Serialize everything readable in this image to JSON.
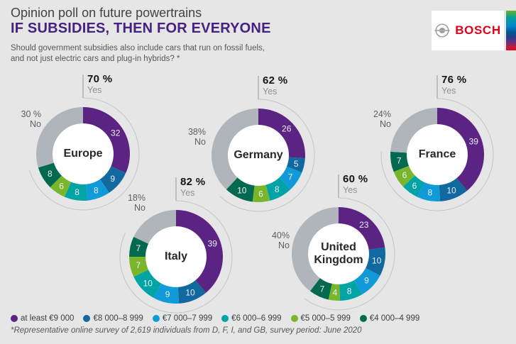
{
  "header": {
    "title": "Opinion poll on future powertrains",
    "headline": "IF SUBSIDIES, THEN FOR EVERYONE",
    "subtitle_line1": "Should government subsidies also include cars that run on fossil fuels,",
    "subtitle_line2": "and not just electric cars and plug-in hybrids? *",
    "brand": "BOSCH"
  },
  "colors": {
    "background": "#E6E6E7",
    "headline_purple": "#46217E",
    "bosch_red": "#E30016",
    "callout_arc_gray": "#C2C6C9",
    "callout_tick_gray": "#9FA4A8"
  },
  "chart_data": {
    "type": "pie",
    "subtype": "donut",
    "title": "IF SUBSIDIES, THEN FOR EVERYONE",
    "unit": "%",
    "legend_position": "bottom",
    "yes_label": "Yes",
    "no_label": "No",
    "legend": [
      "at least €9 000",
      "€8 000–8 999",
      "€7 000–7 999",
      "€6 000–6 999",
      "€5 000–5 999",
      "€4 000–4 999"
    ],
    "segment_colors": [
      "#5B2483",
      "#11699F",
      "#109BD8",
      "#00A4A4",
      "#7AB62C",
      "#046A4F"
    ],
    "no_color": "#AFB5BA",
    "charts": [
      {
        "name": "Europe",
        "yes_pct": "70 %",
        "no_pct": "30 %",
        "yes_value": 70,
        "no_value": 30,
        "values": [
          32,
          9,
          8,
          8,
          6,
          8
        ]
      },
      {
        "name": "Germany",
        "yes_pct": "62 %",
        "no_pct": "38%",
        "yes_value": 62,
        "no_value": 38,
        "values": [
          26,
          5,
          7,
          8,
          6,
          10
        ]
      },
      {
        "name": "France",
        "yes_pct": "76 %",
        "no_pct": "24%",
        "yes_value": 76,
        "no_value": 24,
        "values": [
          39,
          10,
          8,
          6,
          6,
          7
        ]
      },
      {
        "name": "Italy",
        "yes_pct": "82 %",
        "no_pct": "18%",
        "yes_value": 82,
        "no_value": 18,
        "values": [
          39,
          10,
          9,
          10,
          7,
          7
        ]
      },
      {
        "name": "United Kingdom",
        "yes_pct": "60 %",
        "no_pct": "40%",
        "yes_value": 60,
        "no_value": 40,
        "values": [
          23,
          10,
          9,
          8,
          4,
          7
        ]
      }
    ]
  },
  "footnote": "*Representative online survey of 2,619 individuals from D, F, I, and GB, survey period: June 2020"
}
